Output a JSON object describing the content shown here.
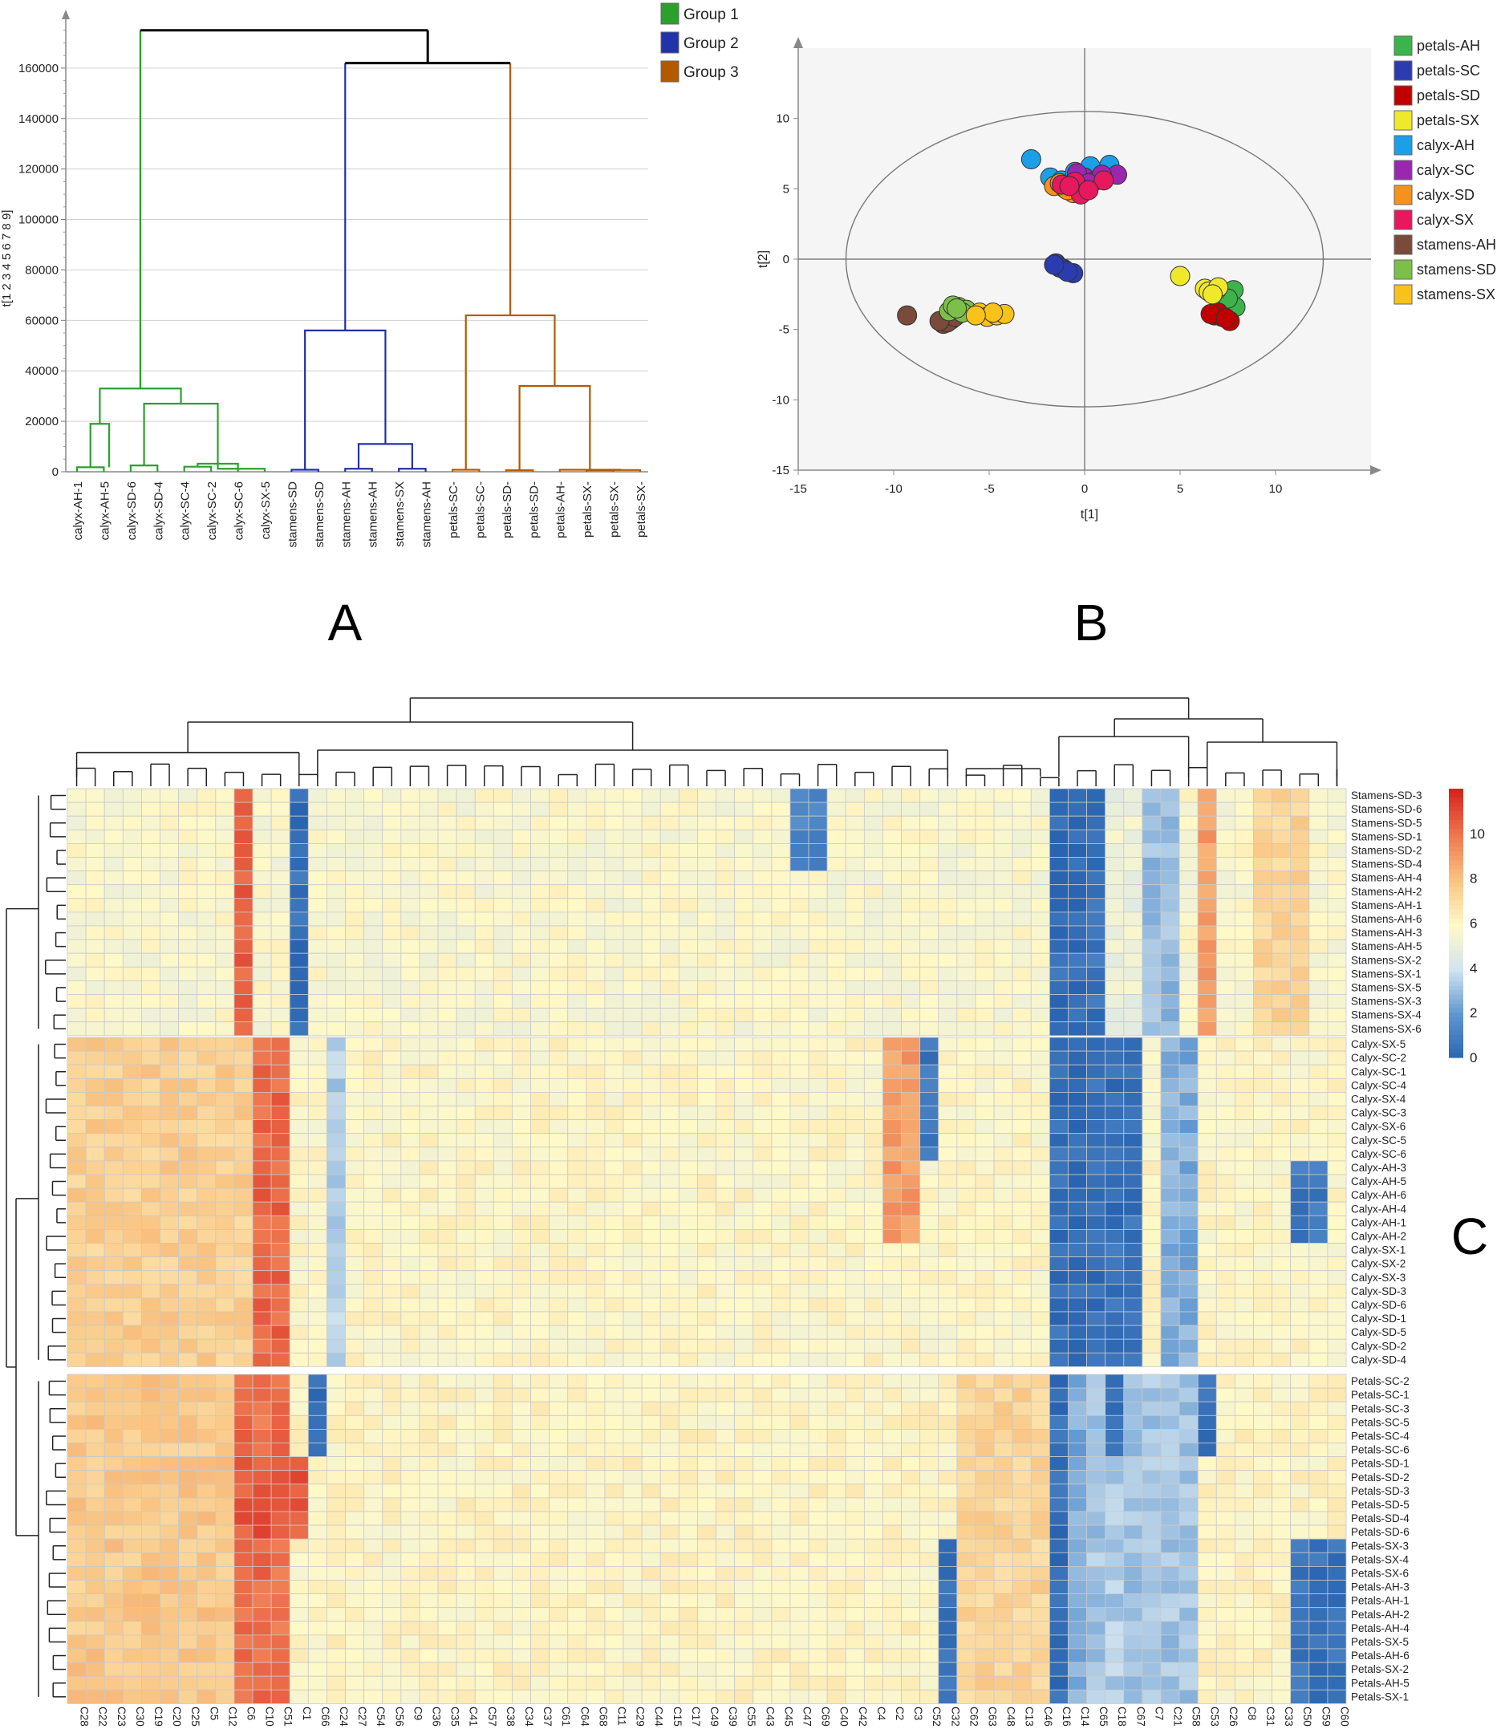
{
  "panel_letters": {
    "a": "A",
    "b": "B",
    "c": "C"
  },
  "chart_data": [
    {
      "type": "dendrogram",
      "id": "A",
      "ylabel": "t[1 2 3 4 5 6 7 8 9]",
      "ylim": [
        0,
        180000
      ],
      "yticks": [
        0,
        20000,
        40000,
        60000,
        80000,
        100000,
        120000,
        140000,
        160000
      ],
      "leaves": [
        "calyx-AH-1",
        "calyx-AH-5",
        "calyx-SD-6",
        "calyx-SD-4",
        "calyx-SC-4",
        "calyx-SC-2",
        "calyx-SC-6",
        "calyx-SX-5",
        "stamens-SD",
        "stamens-SD",
        "stamens-AH",
        "stamens-AH",
        "stamens-SX",
        "stamens-AH",
        "petals-SC-",
        "petals-SC-",
        "petals-SD-",
        "petals-SD-",
        "petals-AH-",
        "petals-SX-",
        "petals-SX-",
        "petals-SX-"
      ],
      "legend": [
        {
          "label": "Group 1",
          "color": "#2ca02c"
        },
        {
          "label": "Group 2",
          "color": "#2232a8"
        },
        {
          "label": "Group 3",
          "color": "#b35a00"
        }
      ],
      "groups": [
        {
          "name": "Group 1",
          "root_height": 175000,
          "subcluster_heights": [
            33000,
            19000,
            27000
          ]
        },
        {
          "name": "Group 2",
          "root_height": 162000,
          "subcluster_heights": [
            56000,
            11000
          ]
        },
        {
          "name": "Group 3",
          "root_height": 162000,
          "subcluster_heights": [
            62000,
            34000
          ]
        }
      ],
      "top_merges": [
        175000,
        162000
      ]
    },
    {
      "type": "scatter",
      "id": "B",
      "xlabel": "t[1]",
      "ylabel": "t[2]",
      "xlim": [
        -15,
        15
      ],
      "ylim": [
        -15,
        15
      ],
      "xticks": [
        -15,
        -10,
        -5,
        0,
        5,
        10
      ],
      "yticks": [
        -15,
        -10,
        -5,
        0,
        5,
        10
      ],
      "ellipse": {
        "rx": 12.5,
        "ry": 10.5
      },
      "series": [
        {
          "name": "petals-AH",
          "color": "#3cb44b",
          "points": [
            [
              7.6,
              -3.0
            ],
            [
              7.9,
              -3.4
            ],
            [
              7.3,
              -2.6
            ],
            [
              7.8,
              -2.2
            ],
            [
              7.1,
              -3.2
            ],
            [
              7.5,
              -2.8
            ]
          ]
        },
        {
          "name": "petals-SC",
          "color": "#2b3cb0",
          "points": [
            [
              -1.5,
              -0.3
            ],
            [
              -1.1,
              -0.7
            ],
            [
              -0.6,
              -1.0
            ],
            [
              -1.3,
              -0.6
            ],
            [
              -0.9,
              -0.9
            ],
            [
              -1.6,
              -0.4
            ]
          ]
        },
        {
          "name": "petals-SD",
          "color": "#c00000",
          "points": [
            [
              6.8,
              -4.0
            ],
            [
              7.2,
              -4.1
            ],
            [
              7.6,
              -4.4
            ],
            [
              7.0,
              -3.8
            ],
            [
              6.6,
              -3.9
            ],
            [
              7.4,
              -4.2
            ]
          ]
        },
        {
          "name": "petals-SX",
          "color": "#f0e82a",
          "points": [
            [
              5.0,
              -1.2
            ],
            [
              6.3,
              -2.1
            ],
            [
              6.9,
              -2.2
            ],
            [
              6.5,
              -2.3
            ],
            [
              7.0,
              -2.0
            ],
            [
              6.7,
              -2.5
            ]
          ]
        },
        {
          "name": "calyx-AH",
          "color": "#1ba0e8",
          "points": [
            [
              -2.8,
              7.1
            ],
            [
              -1.8,
              5.8
            ],
            [
              -1.2,
              5.6
            ],
            [
              -0.5,
              6.2
            ],
            [
              0.3,
              6.6
            ],
            [
              1.3,
              6.7
            ]
          ]
        },
        {
          "name": "calyx-SC",
          "color": "#9b27b0",
          "points": [
            [
              0.0,
              5.8
            ],
            [
              0.6,
              5.6
            ],
            [
              1.7,
              6.0
            ],
            [
              0.9,
              6.0
            ],
            [
              -0.4,
              6.1
            ],
            [
              0.2,
              5.4
            ]
          ]
        },
        {
          "name": "calyx-SD",
          "color": "#f5921c",
          "points": [
            [
              -1.6,
              5.2
            ],
            [
              -1.0,
              5.0
            ],
            [
              -0.6,
              4.7
            ],
            [
              -1.3,
              5.4
            ],
            [
              -0.9,
              4.9
            ],
            [
              -0.3,
              5.1
            ]
          ]
        },
        {
          "name": "calyx-SX",
          "color": "#e8185e",
          "points": [
            [
              -1.2,
              5.3
            ],
            [
              -0.5,
              5.5
            ],
            [
              -0.2,
              4.6
            ],
            [
              1.0,
              5.6
            ],
            [
              -0.8,
              5.2
            ],
            [
              0.2,
              4.9
            ]
          ]
        },
        {
          "name": "stamens-AH",
          "color": "#7a4a3a",
          "points": [
            [
              -9.3,
              -4.0
            ],
            [
              -7.4,
              -4.6
            ],
            [
              -7.0,
              -4.3
            ],
            [
              -7.2,
              -4.5
            ],
            [
              -6.8,
              -4.1
            ],
            [
              -7.6,
              -4.4
            ]
          ]
        },
        {
          "name": "stamens-SD",
          "color": "#7cc04a",
          "points": [
            [
              -6.6,
              -3.4
            ],
            [
              -6.2,
              -3.6
            ],
            [
              -7.1,
              -3.7
            ],
            [
              -6.9,
              -3.3
            ],
            [
              -6.4,
              -3.8
            ],
            [
              -6.7,
              -3.5
            ]
          ]
        },
        {
          "name": "stamens-SX",
          "color": "#f8c21a",
          "points": [
            [
              -5.5,
              -3.8
            ],
            [
              -5.1,
              -4.1
            ],
            [
              -4.6,
              -4.0
            ],
            [
              -4.2,
              -3.9
            ],
            [
              -4.8,
              -3.8
            ],
            [
              -5.7,
              -4.0
            ]
          ]
        }
      ]
    },
    {
      "type": "heatmap",
      "id": "C",
      "color_scale": {
        "min": 0,
        "max": 12,
        "ticks": [
          0,
          2,
          4,
          6,
          8,
          10
        ],
        "colors": [
          "#2a64b0",
          "#fff9c8",
          "#e03020"
        ]
      },
      "columns": [
        "C28",
        "C22",
        "C23",
        "C30",
        "C19",
        "C20",
        "C25",
        "C5",
        "C12",
        "C6",
        "C10",
        "C51",
        "C1",
        "C66",
        "C24",
        "C27",
        "C54",
        "C56",
        "C9",
        "C36",
        "C35",
        "C41",
        "C57",
        "C38",
        "C34",
        "C37",
        "C61",
        "C64",
        "C68",
        "C11",
        "C29",
        "C44",
        "C15",
        "C17",
        "C49",
        "C39",
        "C55",
        "C43",
        "C45",
        "C47",
        "C69",
        "C40",
        "C42",
        "C4",
        "C2",
        "C3",
        "C52",
        "C32",
        "C62",
        "C63",
        "C48",
        "C13",
        "C46",
        "C16",
        "C14",
        "C65",
        "C18",
        "C67",
        "C7",
        "C21",
        "C58",
        "C53",
        "C26",
        "C8",
        "C31",
        "C33",
        "C50",
        "C59",
        "C60"
      ],
      "row_groups": [
        {
          "name": "stamens",
          "rows": [
            "Stamens-SD-3",
            "Stamens-SD-6",
            "Stamens-SD-5",
            "Stamens-SD-1",
            "Stamens-SD-2",
            "Stamens-SD-4",
            "Stamens-AH-4",
            "Stamens-AH-2",
            "Stamens-AH-1",
            "Stamens-AH-6",
            "Stamens-AH-3",
            "Stamens-AH-5",
            "Stamens-SX-2",
            "Stamens-SX-1",
            "Stamens-SX-5",
            "Stamens-SX-3",
            "Stamens-SX-4",
            "Stamens-SX-6"
          ]
        },
        {
          "name": "calyx",
          "rows": [
            "Calyx-SX-5",
            "Calyx-SC-2",
            "Calyx-SC-1",
            "Calyx-SC-4",
            "Calyx-SX-4",
            "Calyx-SC-3",
            "Calyx-SX-6",
            "Calyx-SC-5",
            "Calyx-SC-6",
            "Calyx-AH-3",
            "Calyx-AH-5",
            "Calyx-AH-6",
            "Calyx-AH-4",
            "Calyx-AH-1",
            "Calyx-AH-2",
            "Calyx-SX-1",
            "Calyx-SX-2",
            "Calyx-SX-3",
            "Calyx-SD-3",
            "Calyx-SD-6",
            "Calyx-SD-1",
            "Calyx-SD-5",
            "Calyx-SD-2",
            "Calyx-SD-4"
          ]
        },
        {
          "name": "petals",
          "rows": [
            "Petals-SC-2",
            "Petals-SC-1",
            "Petals-SC-3",
            "Petals-SC-5",
            "Petals-SC-4",
            "Petals-SC-6",
            "Petals-SD-1",
            "Petals-SD-2",
            "Petals-SD-3",
            "Petals-SD-5",
            "Petals-SD-4",
            "Petals-SD-6",
            "Petals-SX-3",
            "Petals-SX-4",
            "Petals-SX-6",
            "Petals-AH-3",
            "Petals-AH-1",
            "Petals-AH-2",
            "Petals-AH-4",
            "Petals-SX-5",
            "Petals-AH-6",
            "Petals-SX-2",
            "Petals-AH-5",
            "Petals-SX-1"
          ]
        }
      ]
    }
  ]
}
